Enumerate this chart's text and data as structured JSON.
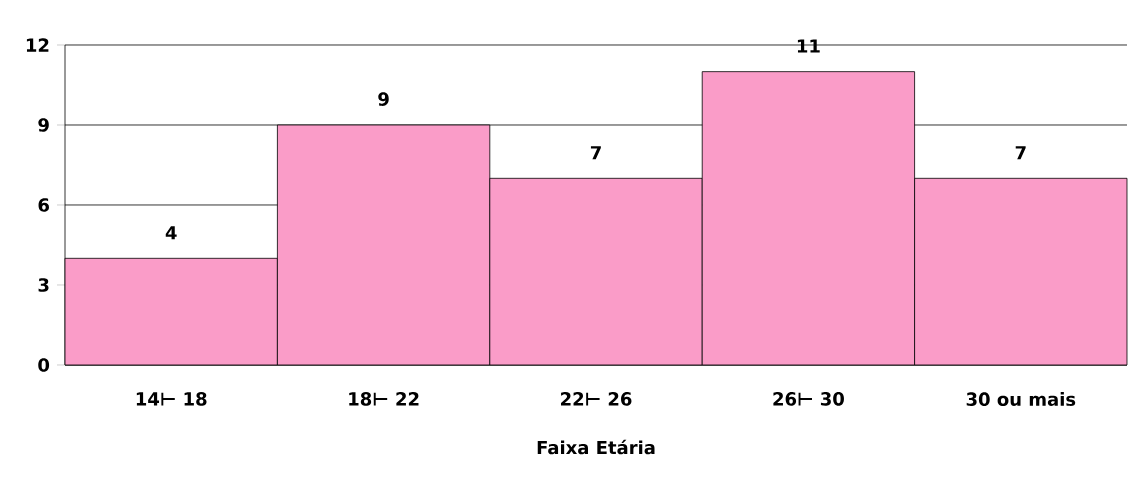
{
  "chart_data": {
    "type": "bar",
    "xlabel": "Faixa Etária",
    "categories": [
      "14⊢ 18",
      "18⊢ 22",
      "22⊢ 26",
      "26⊢ 30",
      "30 ou mais"
    ],
    "values": [
      4,
      9,
      7,
      11,
      7
    ],
    "color": "#fa9cc8",
    "ylim": [
      0,
      12
    ],
    "yticks": [
      0,
      3,
      6,
      9,
      12
    ],
    "grid": "y",
    "data_labels": true
  }
}
